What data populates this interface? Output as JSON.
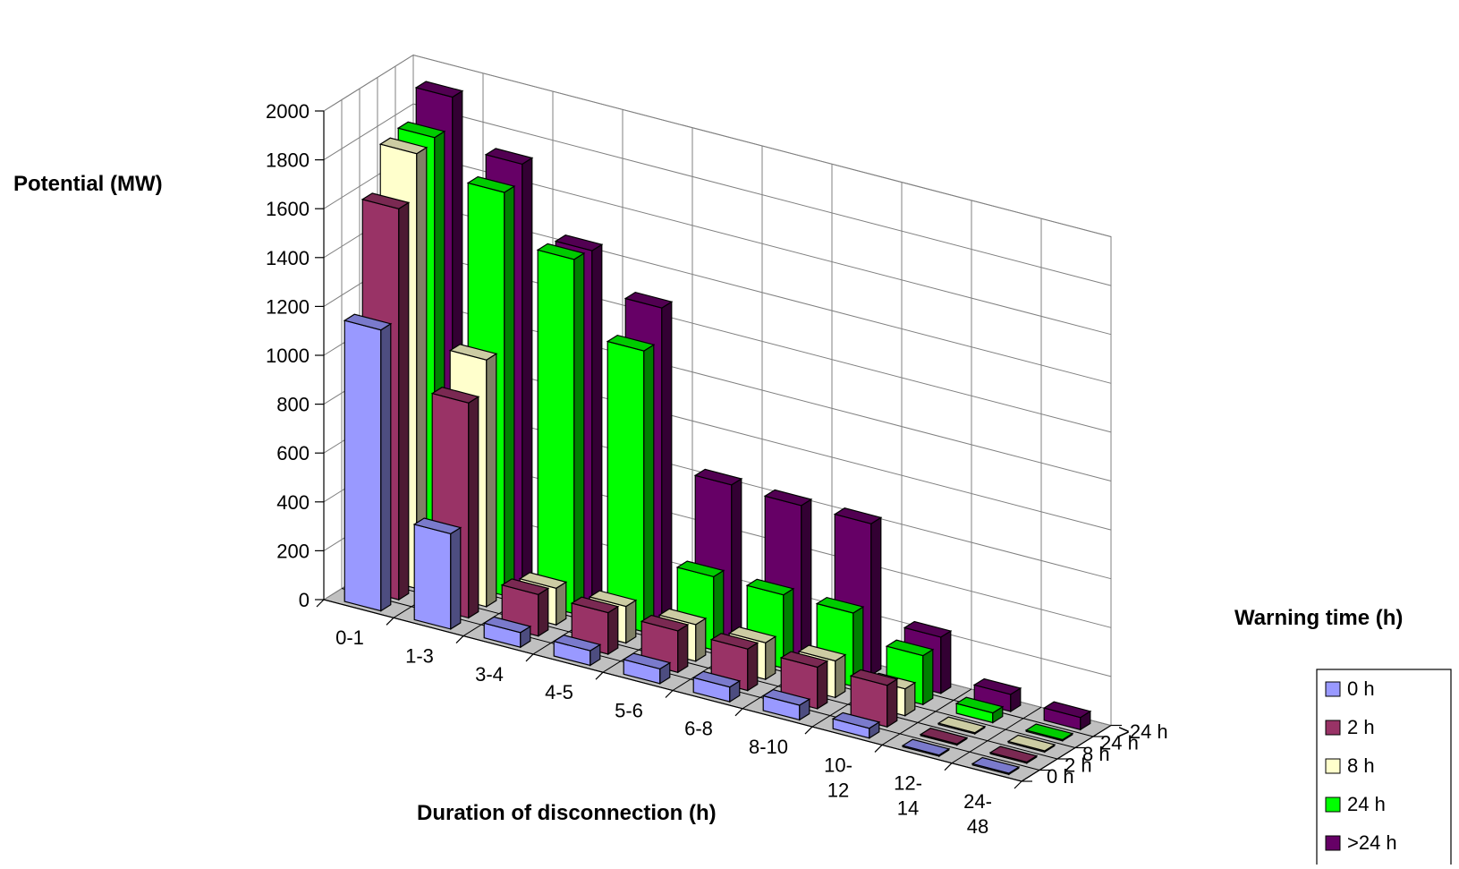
{
  "chart_data": {
    "type": "bar",
    "subtype": "3d-column",
    "title": "",
    "xlabel": "Duration of disconnection (h)",
    "ylabel": "Potential (MW)",
    "zlabel": "Warning time (h)",
    "ylim": [
      0,
      2000
    ],
    "y_ticks": [
      "0",
      "200",
      "400",
      "600",
      "800",
      "1000",
      "1200",
      "1400",
      "1600",
      "1800",
      "2000"
    ],
    "categories": [
      "0-1",
      "1-3",
      "3-4",
      "4-5",
      "5-6",
      "6-8",
      "8-10",
      "10-\n12",
      "12-\n14",
      "24-\n48"
    ],
    "grid": true,
    "legend_position": "bottom-right",
    "series": [
      {
        "name": "0 h",
        "color": "#9999ff",
        "values": [
          1150,
          390,
          60,
          60,
          60,
          60,
          60,
          40,
          5,
          5
        ]
      },
      {
        "name": "2 h",
        "color": "#993366",
        "values": [
          1600,
          880,
          170,
          170,
          170,
          170,
          170,
          170,
          5,
          5
        ]
      },
      {
        "name": "8 h",
        "color": "#ffffcc",
        "values": [
          1780,
          1010,
          150,
          150,
          150,
          150,
          150,
          110,
          5,
          5
        ]
      },
      {
        "name": "24 h",
        "color": "#00ff00",
        "values": [
          1800,
          1650,
          1450,
          1150,
          300,
          300,
          300,
          200,
          40,
          5
        ]
      },
      {
        "name": ">24 h",
        "color": "#660066",
        "values": [
          1920,
          1720,
          1440,
          1280,
          630,
          620,
          620,
          230,
          70,
          50
        ]
      }
    ]
  }
}
